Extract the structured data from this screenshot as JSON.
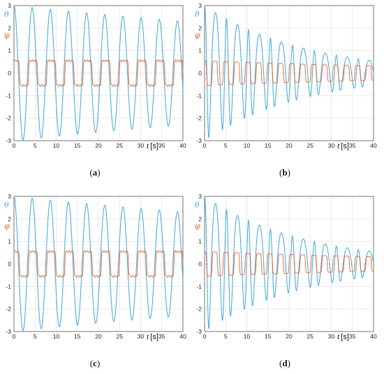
{
  "colors": {
    "theta": "#4daee0",
    "phi": "#e8622c",
    "grid": "#e2e2e2",
    "axis": "#555555"
  },
  "labels": {
    "theta_symbol": "θ",
    "phi_symbol": "φ",
    "x_var": "t",
    "x_unit": "[s]"
  },
  "panels": [
    {
      "caption_open": "(",
      "caption_letter": "a",
      "caption_close": ")"
    },
    {
      "caption_open": "(",
      "caption_letter": "b",
      "caption_close": ")"
    },
    {
      "caption_open": "(",
      "caption_letter": "c",
      "caption_close": ")"
    },
    {
      "caption_open": "(",
      "caption_letter": "d",
      "caption_close": ")"
    }
  ],
  "chart_data": [
    {
      "type": "line",
      "panel": "a",
      "xlim": [
        0,
        40
      ],
      "ylim": [
        -3,
        3
      ],
      "xticks": [
        0,
        5,
        10,
        15,
        20,
        25,
        30,
        35,
        40
      ],
      "yticks": [
        -3,
        -2,
        -1,
        0,
        1,
        2,
        3
      ],
      "grid": true,
      "legend_placement": "top-left",
      "series": [
        {
          "name": "θ",
          "model": "sinusoid",
          "initial": 3,
          "final_envelope": 2.3,
          "period": 4.3,
          "x": [
            0,
            2.2,
            4.4,
            6.6,
            8.8,
            11,
            13.2,
            15.4,
            17.6,
            19.8,
            22,
            24.2,
            26.4,
            28.6,
            30.8,
            33,
            35.2,
            37.4,
            39.6
          ],
          "y": [
            3,
            -2.9,
            2.85,
            -2.8,
            2.75,
            -2.72,
            2.68,
            -2.65,
            2.6,
            -2.58,
            2.55,
            -2.52,
            2.5,
            -2.47,
            2.45,
            -2.42,
            2.4,
            -2.36,
            2.3
          ]
        },
        {
          "name": "φ",
          "model": "square",
          "amplitude": 0.55,
          "period": 4.3,
          "x": [
            0,
            1,
            2.2,
            3.2,
            4.4,
            5.4,
            6.6,
            7.6,
            8.8,
            39.6
          ],
          "y": [
            0.55,
            0.55,
            -0.55,
            -0.55,
            0.55,
            0.55,
            -0.55,
            -0.55,
            0.55,
            -0.55
          ]
        }
      ]
    },
    {
      "type": "line",
      "panel": "b",
      "xlim": [
        0,
        40
      ],
      "ylim": [
        -3,
        3
      ],
      "xticks": [
        0,
        5,
        10,
        15,
        20,
        25,
        30,
        35,
        40
      ],
      "yticks": [
        -3,
        -2,
        -1,
        0,
        1,
        2,
        3
      ],
      "grid": true,
      "legend_placement": "top-left",
      "series": [
        {
          "name": "θ",
          "model": "damped",
          "initial": 3,
          "final_envelope": 0.55,
          "period": 2.6,
          "x": [
            0,
            1.3,
            2.6,
            3.9,
            5.2,
            7.8,
            10.4,
            13,
            15.6,
            20.8,
            26,
            31.2,
            36.4,
            39.6
          ],
          "y": [
            3,
            -1.3,
            -2.45,
            2.25,
            -2.15,
            2.0,
            -1.8,
            1.6,
            -1.35,
            1.1,
            -0.95,
            0.8,
            -0.65,
            0.55
          ]
        },
        {
          "name": "φ",
          "model": "decaying-square",
          "amplitude": 0.55,
          "final_envelope": 0.32,
          "period": 2.6,
          "x": [
            0,
            2,
            4,
            8,
            16,
            24,
            32,
            39.6
          ],
          "y": [
            0.55,
            0.55,
            -0.5,
            0.45,
            -0.4,
            0.36,
            -0.33,
            0.3
          ]
        }
      ]
    },
    {
      "type": "line",
      "panel": "c",
      "xlim": [
        0,
        40
      ],
      "ylim": [
        -3,
        3
      ],
      "xticks": [
        0,
        5,
        10,
        15,
        20,
        25,
        30,
        35,
        40
      ],
      "yticks": [
        -3,
        -2,
        -1,
        0,
        1,
        2,
        3
      ],
      "grid": true,
      "legend_placement": "top-left",
      "series": [
        {
          "name": "θ",
          "model": "sinusoid",
          "initial": 3,
          "final_envelope": 2.3,
          "period": 4.3,
          "x": [
            0,
            2.2,
            4.4,
            6.6,
            8.8,
            11,
            13.2,
            15.4,
            17.6,
            19.8,
            22,
            24.2,
            26.4,
            28.6,
            30.8,
            33,
            35.2,
            37.4,
            39.6
          ],
          "y": [
            3,
            -2.8,
            2.85,
            -2.75,
            2.75,
            -2.7,
            2.68,
            -2.65,
            2.6,
            -2.58,
            2.55,
            -2.52,
            2.5,
            -2.47,
            2.45,
            -2.42,
            2.4,
            -2.36,
            2.3
          ]
        },
        {
          "name": "φ",
          "model": "square",
          "amplitude": 0.55,
          "period": 4.3,
          "x": [
            0,
            1,
            2.2,
            3.2,
            4.4,
            5.4,
            6.6,
            39.6
          ],
          "y": [
            0.55,
            0.55,
            -0.55,
            -0.55,
            0.55,
            0.55,
            -0.55,
            -0.55
          ]
        }
      ]
    },
    {
      "type": "line",
      "panel": "d",
      "xlim": [
        0,
        40
      ],
      "ylim": [
        -3,
        3
      ],
      "xticks": [
        0,
        5,
        10,
        15,
        20,
        25,
        30,
        35,
        40
      ],
      "yticks": [
        -3,
        -2,
        -1,
        0,
        1,
        2,
        3
      ],
      "grid": true,
      "legend_placement": "top-left",
      "series": [
        {
          "name": "θ",
          "model": "damped",
          "initial": 3,
          "final_envelope": 0.55,
          "period": 2.6,
          "x": [
            0,
            1.3,
            2.6,
            3.9,
            5.2,
            7.8,
            10.4,
            13,
            15.6,
            20.8,
            26,
            31.2,
            36.4,
            39.6
          ],
          "y": [
            3,
            -1.3,
            -2.4,
            2.3,
            -2.1,
            1.95,
            -1.75,
            1.55,
            -1.35,
            1.1,
            -0.95,
            0.8,
            -0.65,
            0.55
          ]
        },
        {
          "name": "φ",
          "model": "decaying-square",
          "amplitude": 0.55,
          "final_envelope": 0.32,
          "period": 2.6,
          "x": [
            0,
            2,
            4,
            8,
            16,
            24,
            32,
            39.6
          ],
          "y": [
            0.55,
            0.55,
            -0.5,
            0.45,
            -0.4,
            0.36,
            -0.33,
            0.3
          ]
        }
      ]
    }
  ]
}
